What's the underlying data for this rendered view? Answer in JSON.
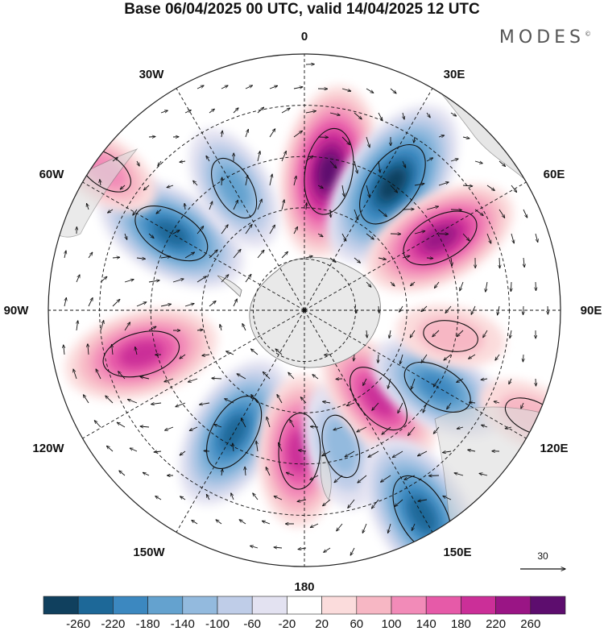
{
  "title": "Base 06/04/2025 00 UTC, valid 14/04/2025 12 UTC",
  "brand": "MODES",
  "brand_mark": "©",
  "longitude_labels": {
    "n0": "0",
    "e30": "30E",
    "e60": "60E",
    "e90": "90E",
    "e120": "120E",
    "e150": "150E",
    "s180": "180",
    "w150": "150W",
    "w120": "120W",
    "w90": "90W",
    "w60": "60W",
    "w30": "30W"
  },
  "vector_reference": {
    "label": "30"
  },
  "colorbar": {
    "colors": [
      "#10405e",
      "#1d6898",
      "#3c88c0",
      "#64a2cf",
      "#93bade",
      "#bfcde8",
      "#e3e2f1",
      "#ffffff",
      "#fbdcdc",
      "#f7b7c4",
      "#f28bb8",
      "#e65aa8",
      "#cb2f98",
      "#9a1585",
      "#5d0d6e"
    ],
    "labels": [
      "-260",
      "-220",
      "-180",
      "-140",
      "-100",
      "-60",
      "-20",
      "20",
      "60",
      "100",
      "140",
      "180",
      "220",
      "260"
    ]
  },
  "anomaly_centres": [
    {
      "lon": 10,
      "dist": 0.55,
      "value": 240
    },
    {
      "lon": 35,
      "dist": 0.6,
      "value": -260
    },
    {
      "lon": 62,
      "dist": 0.6,
      "value": 200
    },
    {
      "lon": -60,
      "dist": 0.6,
      "value": -200
    },
    {
      "lon": -30,
      "dist": 0.55,
      "value": -120
    },
    {
      "lon": -105,
      "dist": 0.66,
      "value": 190
    },
    {
      "lon": -150,
      "dist": 0.55,
      "value": -200
    },
    {
      "lon": -178,
      "dist": 0.55,
      "value": 180
    },
    {
      "lon": 165,
      "dist": 0.55,
      "value": -110
    },
    {
      "lon": 140,
      "dist": 0.45,
      "value": 170
    },
    {
      "lon": 120,
      "dist": 0.6,
      "value": -160
    },
    {
      "lon": 150,
      "dist": 0.92,
      "value": -230
    },
    {
      "lon": -55,
      "dist": 0.95,
      "value": 80
    },
    {
      "lon": 100,
      "dist": 0.58,
      "value": 60
    },
    {
      "lon": 115,
      "dist": 0.98,
      "value": 70
    }
  ]
}
